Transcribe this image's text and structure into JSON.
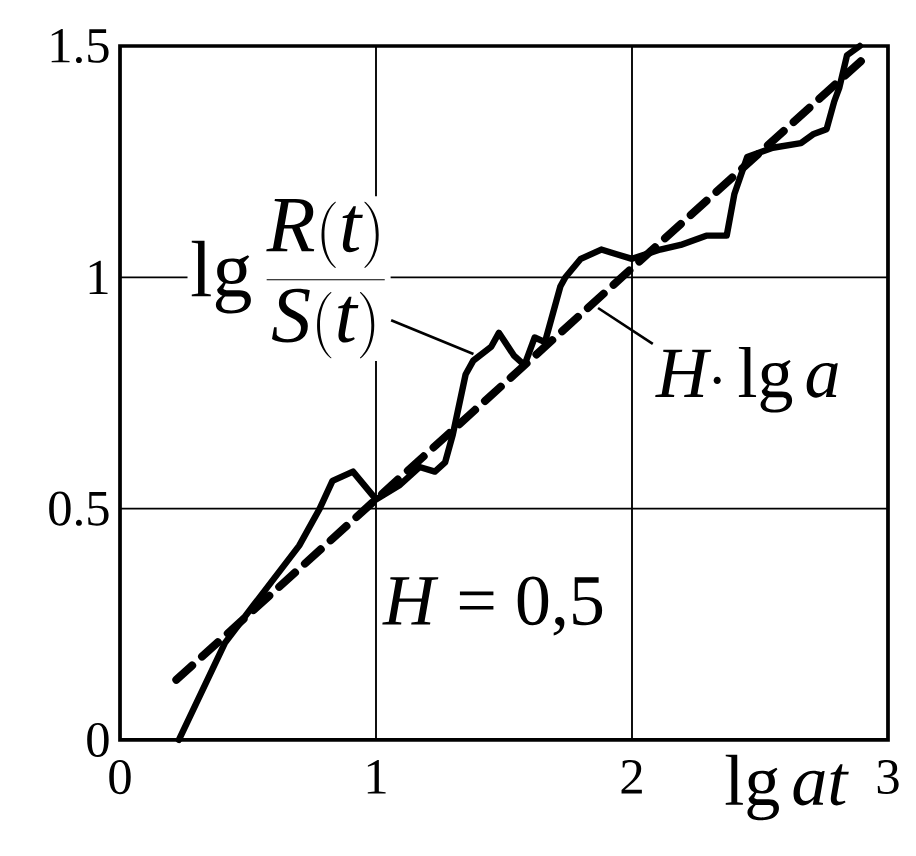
{
  "chart_data": {
    "type": "line",
    "xlabel": "\\lg at",
    "xlim": [
      0,
      3
    ],
    "ylim": [
      0,
      1.5
    ],
    "xticks": [
      0,
      1,
      2,
      3
    ],
    "yticks": [
      0,
      0.5,
      1,
      1.5
    ],
    "grid": true,
    "series": [
      {
        "color": "#000000",
        "line_style": "solid",
        "x": [
          0.23,
          0.41,
          0.52,
          0.7,
          0.78,
          0.83,
          0.91,
          1.0,
          1.09,
          1.17,
          1.23,
          1.27,
          1.3,
          1.35,
          1.38,
          1.45,
          1.48,
          1.54,
          1.58,
          1.62,
          1.66,
          1.72,
          1.74,
          1.8,
          1.88,
          1.94,
          2.0,
          2.11,
          2.19,
          2.29,
          2.37,
          2.4,
          2.45,
          2.55,
          2.66,
          2.71,
          2.76,
          2.79,
          2.81,
          2.84,
          2.89
        ],
        "values": [
          0,
          0.21,
          0.29,
          0.42,
          0.5,
          0.56,
          0.58,
          0.52,
          0.55,
          0.59,
          0.58,
          0.6,
          0.66,
          0.79,
          0.82,
          0.85,
          0.88,
          0.83,
          0.81,
          0.87,
          0.86,
          0.98,
          1.0,
          1.04,
          1.06,
          1.05,
          1.04,
          1.06,
          1.07,
          1.09,
          1.09,
          1.18,
          1.26,
          1.28,
          1.29,
          1.31,
          1.32,
          1.38,
          1.41,
          1.48,
          1.5
        ]
      },
      {
        "color": "#000000",
        "line_style": "dashed",
        "x": [
          0.22,
          2.9
        ],
        "values": [
          0.13,
          1.47
        ]
      }
    ],
    "annotations": [
      {
        "text": "\\lg\\frac{R(t)}{S(t)}",
        "x": 1.4,
        "y": 0.83
      },
      {
        "text": "H{\\cdot}\\lg a",
        "x": 1.85,
        "y": 0.94
      },
      "*H* = 0,5"
    ]
  }
}
